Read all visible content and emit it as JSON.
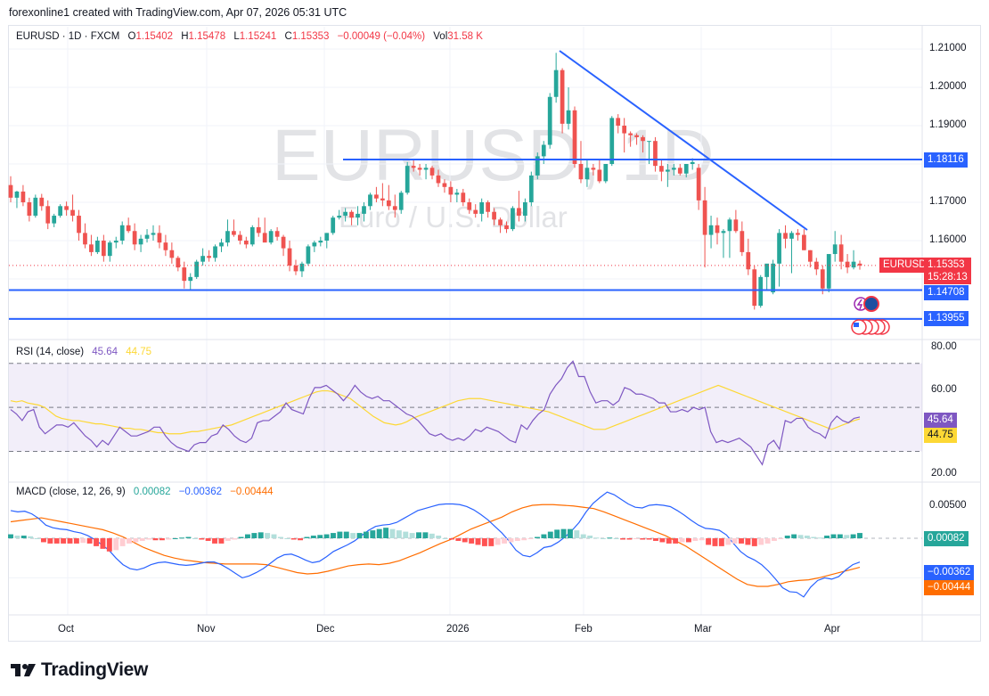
{
  "attribution": "forexonline1 created with TradingView.com, Apr 07, 2026 05:31 UTC",
  "legend": {
    "symbol": "EURUSD · 1D · FXCM",
    "open_label": "O",
    "open": "1.15402",
    "high_label": "H",
    "high": "1.15478",
    "low_label": "L",
    "low": "1.15241",
    "close_label": "C",
    "close": "1.15353",
    "change": "−0.00049 (−0.04%)",
    "vol_label": "Vol",
    "vol": "31.58 K"
  },
  "watermark": {
    "symbol": "EURUSD, 1D",
    "description": "Euro / U.S. Dollar"
  },
  "price_axis": {
    "ticks": [
      "1.21000",
      "1.20000",
      "1.19000",
      "1.17000",
      "1.16000"
    ],
    "symbol_tag": "EURUSD",
    "last_price": "1.15353",
    "countdown": "15:28:13",
    "levels": [
      "1.18116",
      "1.14708",
      "1.13955"
    ]
  },
  "rsi": {
    "label": "RSI (14, close)",
    "value": "45.64",
    "ma": "44.75",
    "ticks": [
      "80.00",
      "60.00",
      "20.00"
    ]
  },
  "macd": {
    "label": "MACD (close, 12, 26, 9)",
    "hist": "0.00082",
    "macd": "−0.00362",
    "signal": "−0.00444",
    "ticks": [
      "0.00500"
    ]
  },
  "time_axis": [
    "Oct",
    "Nov",
    "Dec",
    "2026",
    "Feb",
    "Mar",
    "Apr"
  ],
  "brand": "TradingView",
  "colors": {
    "up": "#26a69a",
    "down": "#ef5350",
    "level": "#2962ff",
    "rsi": "#7e57c2",
    "rsi_ma": "#fdd835",
    "macd": "#2962ff",
    "signal": "#ff6d00",
    "last_price": "#f23645"
  },
  "chart_data": [
    {
      "type": "candlestick",
      "title": "EURUSD · 1D · FXCM",
      "ylabel": "Price",
      "ylim": [
        1.133,
        1.213
      ],
      "x_ticks": [
        "Oct",
        "Nov",
        "Dec",
        "2026",
        "Feb",
        "Mar",
        "Apr"
      ],
      "ohlc": [
        [
          1.1745,
          1.1768,
          1.17,
          1.1712
        ],
        [
          1.1712,
          1.173,
          1.1685,
          1.1728
        ],
        [
          1.1728,
          1.1745,
          1.169,
          1.17
        ],
        [
          1.17,
          1.1712,
          1.165,
          1.1665
        ],
        [
          1.1665,
          1.172,
          1.166,
          1.1712
        ],
        [
          1.1712,
          1.1722,
          1.1678,
          1.169
        ],
        [
          1.169,
          1.1705,
          1.163,
          1.1645
        ],
        [
          1.1645,
          1.167,
          1.1635,
          1.1665
        ],
        [
          1.1665,
          1.1695,
          1.166,
          1.169
        ],
        [
          1.169,
          1.1702,
          1.1665,
          1.168
        ],
        [
          1.168,
          1.172,
          1.165,
          1.1665
        ],
        [
          1.1665,
          1.168,
          1.16,
          1.162
        ],
        [
          1.162,
          1.1645,
          1.158,
          1.159
        ],
        [
          1.159,
          1.1615,
          1.156,
          1.157
        ],
        [
          1.157,
          1.161,
          1.1565,
          1.16
        ],
        [
          1.16,
          1.1615,
          1.1545,
          1.156
        ],
        [
          1.156,
          1.16,
          1.1545,
          1.1595
        ],
        [
          1.1595,
          1.161,
          1.158,
          1.16
        ],
        [
          1.16,
          1.165,
          1.159,
          1.164
        ],
        [
          1.164,
          1.166,
          1.162,
          1.1625
        ],
        [
          1.1625,
          1.1645,
          1.1575,
          1.159
        ],
        [
          1.159,
          1.1615,
          1.157,
          1.1605
        ],
        [
          1.1605,
          1.163,
          1.1595,
          1.1615
        ],
        [
          1.1615,
          1.164,
          1.16,
          1.162
        ],
        [
          1.162,
          1.164,
          1.158,
          1.1595
        ],
        [
          1.1595,
          1.1615,
          1.156,
          1.1575
        ],
        [
          1.1575,
          1.1595,
          1.154,
          1.1555
        ],
        [
          1.1555,
          1.156,
          1.152,
          1.153
        ],
        [
          1.153,
          1.1545,
          1.1475,
          1.1495
        ],
        [
          1.1495,
          1.1515,
          1.147,
          1.1505
        ],
        [
          1.1505,
          1.155,
          1.15,
          1.1545
        ],
        [
          1.1545,
          1.158,
          1.1535,
          1.156
        ],
        [
          1.156,
          1.1575,
          1.1545,
          1.1555
        ],
        [
          1.1555,
          1.159,
          1.1545,
          1.1585
        ],
        [
          1.1585,
          1.1605,
          1.157,
          1.1595
        ],
        [
          1.1595,
          1.1655,
          1.1585,
          1.1625
        ],
        [
          1.1625,
          1.1655,
          1.161,
          1.1615
        ],
        [
          1.1615,
          1.1625,
          1.159,
          1.16
        ],
        [
          1.16,
          1.161,
          1.158,
          1.159
        ],
        [
          1.159,
          1.164,
          1.1585,
          1.1635
        ],
        [
          1.1635,
          1.166,
          1.161,
          1.162
        ],
        [
          1.162,
          1.166,
          1.16,
          1.1595
        ],
        [
          1.1595,
          1.163,
          1.159,
          1.1625
        ],
        [
          1.1625,
          1.1635,
          1.16,
          1.161
        ],
        [
          1.161,
          1.1615,
          1.156,
          1.158
        ],
        [
          1.158,
          1.16,
          1.152,
          1.1535
        ],
        [
          1.1535,
          1.155,
          1.151,
          1.152
        ],
        [
          1.152,
          1.1545,
          1.1505,
          1.154
        ],
        [
          1.154,
          1.159,
          1.1535,
          1.1585
        ],
        [
          1.1585,
          1.16,
          1.157,
          1.1595
        ],
        [
          1.1595,
          1.161,
          1.1585,
          1.16
        ],
        [
          1.16,
          1.162,
          1.158,
          1.162
        ],
        [
          1.162,
          1.1665,
          1.1615,
          1.166
        ],
        [
          1.166,
          1.168,
          1.1655,
          1.1665
        ],
        [
          1.1665,
          1.1685,
          1.165,
          1.1675
        ],
        [
          1.1675,
          1.168,
          1.164,
          1.166
        ],
        [
          1.166,
          1.169,
          1.164,
          1.167
        ],
        [
          1.167,
          1.17,
          1.165,
          1.169
        ],
        [
          1.169,
          1.1725,
          1.168,
          1.172
        ],
        [
          1.172,
          1.174,
          1.17,
          1.171
        ],
        [
          1.171,
          1.175,
          1.169,
          1.1705
        ],
        [
          1.1705,
          1.1745,
          1.168,
          1.169
        ],
        [
          1.169,
          1.172,
          1.166,
          1.168
        ],
        [
          1.168,
          1.173,
          1.167,
          1.1725
        ],
        [
          1.1725,
          1.1805,
          1.172,
          1.1795
        ],
        [
          1.1795,
          1.181,
          1.178,
          1.179
        ],
        [
          1.179,
          1.18,
          1.177,
          1.1785
        ],
        [
          1.1785,
          1.18,
          1.176,
          1.179
        ],
        [
          1.179,
          1.1795,
          1.176,
          1.177
        ],
        [
          1.177,
          1.1785,
          1.174,
          1.175
        ],
        [
          1.175,
          1.176,
          1.1725,
          1.174
        ],
        [
          1.174,
          1.1755,
          1.17,
          1.172
        ],
        [
          1.172,
          1.1735,
          1.17,
          1.1725
        ],
        [
          1.1725,
          1.1735,
          1.169,
          1.17
        ],
        [
          1.17,
          1.171,
          1.167,
          1.168
        ],
        [
          1.168,
          1.1695,
          1.166,
          1.167
        ],
        [
          1.167,
          1.171,
          1.165,
          1.17
        ],
        [
          1.17,
          1.1705,
          1.166,
          1.1675
        ],
        [
          1.1675,
          1.1685,
          1.164,
          1.1655
        ],
        [
          1.1655,
          1.166,
          1.162,
          1.164
        ],
        [
          1.164,
          1.165,
          1.162,
          1.163
        ],
        [
          1.163,
          1.169,
          1.1625,
          1.1685
        ],
        [
          1.1685,
          1.173,
          1.165,
          1.1665
        ],
        [
          1.1665,
          1.171,
          1.165,
          1.17
        ],
        [
          1.17,
          1.178,
          1.169,
          1.177
        ],
        [
          1.177,
          1.183,
          1.176,
          1.182
        ],
        [
          1.182,
          1.186,
          1.18,
          1.185
        ],
        [
          1.185,
          1.1985,
          1.184,
          1.1975
        ],
        [
          1.1975,
          1.209,
          1.196,
          1.2045
        ],
        [
          1.2045,
          1.205,
          1.188,
          1.1905
        ],
        [
          1.1905,
          1.2,
          1.189,
          1.194
        ],
        [
          1.194,
          1.195,
          1.179,
          1.18
        ],
        [
          1.18,
          1.186,
          1.175,
          1.176
        ],
        [
          1.176,
          1.181,
          1.174,
          1.179
        ],
        [
          1.179,
          1.18,
          1.177,
          1.1785
        ],
        [
          1.1785,
          1.181,
          1.175,
          1.1755
        ],
        [
          1.1755,
          1.18,
          1.175,
          1.18
        ],
        [
          1.18,
          1.1925,
          1.1795,
          1.192
        ],
        [
          1.192,
          1.193,
          1.188,
          1.19
        ],
        [
          1.19,
          1.192,
          1.183,
          1.188
        ],
        [
          1.188,
          1.1885,
          1.1845,
          1.1875
        ],
        [
          1.1875,
          1.188,
          1.185,
          1.187
        ],
        [
          1.187,
          1.1875,
          1.183,
          1.186
        ],
        [
          1.186,
          1.186,
          1.18,
          1.186
        ],
        [
          1.186,
          1.187,
          1.178,
          1.1795
        ],
        [
          1.1795,
          1.181,
          1.1755,
          1.178
        ],
        [
          1.178,
          1.18,
          1.174,
          1.1785
        ],
        [
          1.1785,
          1.18,
          1.177,
          1.179
        ],
        [
          1.179,
          1.18,
          1.177,
          1.1775
        ],
        [
          1.1775,
          1.18,
          1.1765,
          1.18
        ],
        [
          1.18,
          1.1815,
          1.1785,
          1.1805
        ],
        [
          1.179,
          1.18,
          1.168,
          1.1705
        ],
        [
          1.1705,
          1.174,
          1.153,
          1.1615
        ],
        [
          1.1615,
          1.1665,
          1.158,
          1.164
        ],
        [
          1.164,
          1.166,
          1.159,
          1.162
        ],
        [
          1.162,
          1.163,
          1.1555,
          1.1625
        ],
        [
          1.1625,
          1.166,
          1.1555,
          1.1655
        ],
        [
          1.1655,
          1.168,
          1.162,
          1.1625
        ],
        [
          1.1625,
          1.165,
          1.156,
          1.157
        ],
        [
          1.157,
          1.1605,
          1.151,
          1.1525
        ],
        [
          1.1525,
          1.1535,
          1.142,
          1.143
        ],
        [
          1.143,
          1.151,
          1.1425,
          1.1505
        ],
        [
          1.1505,
          1.1525,
          1.147,
          1.154
        ],
        [
          1.1465,
          1.155,
          1.146,
          1.154
        ],
        [
          1.154,
          1.163,
          1.148,
          1.162
        ],
        [
          1.162,
          1.164,
          1.158,
          1.1605
        ],
        [
          1.1605,
          1.1625,
          1.1515,
          1.162
        ],
        [
          1.162,
          1.163,
          1.16,
          1.1615
        ],
        [
          1.1615,
          1.163,
          1.1575,
          1.1575
        ],
        [
          1.1575,
          1.1575,
          1.153,
          1.1545
        ],
        [
          1.1545,
          1.1555,
          1.151,
          1.1525
        ],
        [
          1.1525,
          1.1535,
          1.146,
          1.1475
        ],
        [
          1.1475,
          1.156,
          1.1465,
          1.1565
        ],
        [
          1.1565,
          1.1625,
          1.1545,
          1.159
        ],
        [
          1.159,
          1.1615,
          1.1525,
          1.1545
        ],
        [
          1.1545,
          1.1565,
          1.1515,
          1.153
        ],
        [
          1.153,
          1.1575,
          1.1525,
          1.1545
        ],
        [
          1.154,
          1.1548,
          1.1524,
          1.1535
        ]
      ],
      "levels": [
        1.18116,
        1.14708,
        1.13955
      ],
      "trendline": {
        "from": [
          1.209,
          "late Jan"
        ],
        "to": [
          1.163,
          "late Mar"
        ]
      },
      "last_price": 1.15353
    },
    {
      "type": "line",
      "title": "RSI (14, close)",
      "ylim": [
        20,
        80
      ],
      "bands": [
        70,
        50,
        30
      ],
      "series": [
        {
          "name": "RSI",
          "last": 45.64
        },
        {
          "name": "RSI-based MA",
          "last": 44.75
        }
      ]
    },
    {
      "type": "bar+line",
      "title": "MACD (close, 12, 26, 9)",
      "series": [
        {
          "name": "Histogram",
          "last": 0.00082
        },
        {
          "name": "MACD",
          "last": -0.00362
        },
        {
          "name": "Signal",
          "last": -0.00444
        }
      ]
    }
  ]
}
